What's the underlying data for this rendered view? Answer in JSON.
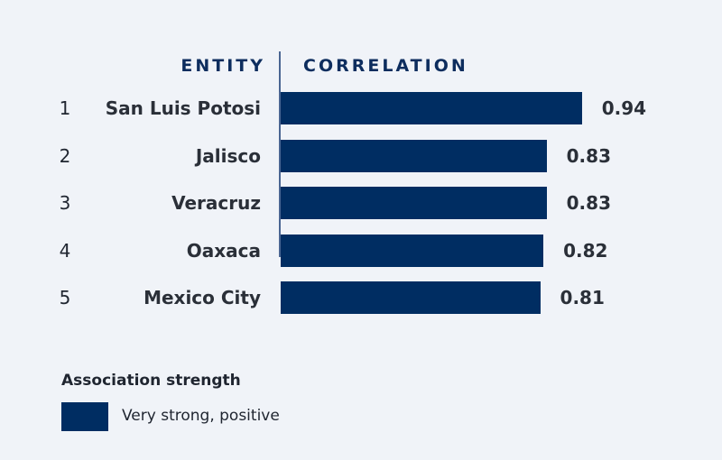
{
  "chart_data": {
    "type": "bar",
    "orientation": "horizontal",
    "column_headers": {
      "entity": "ENTITY",
      "value": "CORRELATION"
    },
    "categories": [
      "San Luis Potosi",
      "Jalisco",
      "Veracruz",
      "Oaxaca",
      "Mexico City"
    ],
    "ranks": [
      "1",
      "2",
      "3",
      "4",
      "5"
    ],
    "values": [
      0.94,
      0.83,
      0.83,
      0.82,
      0.81
    ],
    "value_labels": [
      "0.94",
      "0.83",
      "0.83",
      "0.82",
      "0.81"
    ],
    "xlim": [
      0,
      1
    ],
    "bar_color": "#002d62",
    "legend": {
      "title": "Association strength",
      "items": [
        {
          "label": "Very strong, positive",
          "color": "#002d62"
        }
      ]
    }
  }
}
